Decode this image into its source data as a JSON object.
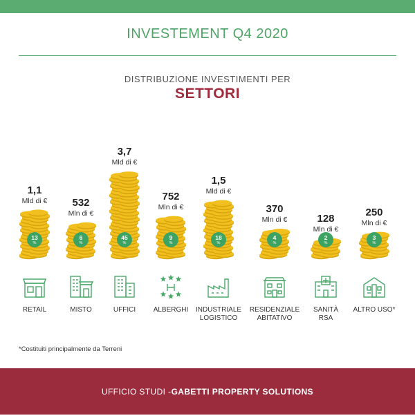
{
  "header": {
    "title": "INVESTEMENT Q4 2020",
    "subtitle": "DISTRIBUZIONE INVESTIMENTI PER",
    "subtitle_strong": "SETTORI"
  },
  "chart_data": {
    "type": "bar",
    "title": "DISTRIBUZIONE INVESTIMENTI PER SETTORI",
    "categories": [
      "RETAIL",
      "MISTO",
      "UFFICI",
      "ALBERGHI",
      "INDUSTRIALE LOGISTICO",
      "RESIDENZIALE ABITATIVO",
      "SANITÀ RSA",
      "ALTRO USO*"
    ],
    "category_lines": [
      [
        "RETAIL"
      ],
      [
        "MISTO"
      ],
      [
        "UFFICI"
      ],
      [
        "ALBERGHI"
      ],
      [
        "INDUSTRIALE",
        "LOGISTICO"
      ],
      [
        "RESIDENZIALE",
        "ABITATIVO"
      ],
      [
        "SANITÀ",
        "RSA"
      ],
      [
        "ALTRO USO*"
      ]
    ],
    "value_labels": [
      "1,1",
      "532",
      "3,7",
      "752",
      "1,5",
      "370",
      "128",
      "250"
    ],
    "unit_labels": [
      "Mld di €",
      "Mln di €",
      "Mld di €",
      "Mln di €",
      "Mld di €",
      "Mln di €",
      "Mln di €",
      "Mln di €"
    ],
    "values_mln_eur": [
      1100,
      532,
      3700,
      752,
      1500,
      370,
      128,
      250
    ],
    "percentages": [
      13,
      6,
      45,
      9,
      18,
      4,
      2,
      3
    ],
    "percent_symbol": "%",
    "icons": [
      "retail-store-icon",
      "mixed-use-building-icon",
      "office-building-icon",
      "hotel-stars-icon",
      "factory-icon",
      "residential-house-icon",
      "hospital-icon",
      "other-building-icon"
    ],
    "colors": {
      "coin": "#f2c01e",
      "coin_edge": "#d9a50f",
      "badge": "#3da363",
      "icon": "#4aa868"
    }
  },
  "footnote": "*Costituiti principalmente da Terreni",
  "footer": {
    "prefix": "UFFICIO STUDI - ",
    "brand": "GABETTI PROPERTY SOLUTIONS"
  }
}
